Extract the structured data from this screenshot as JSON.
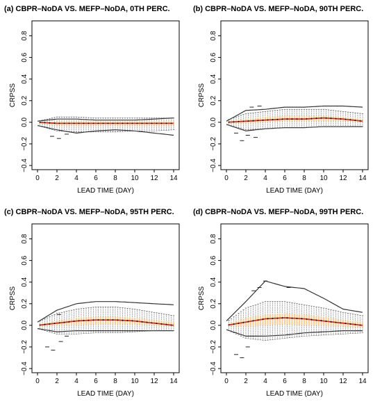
{
  "colors": {
    "median_line": "#c0392b",
    "iqr_fill": "#f6cf9a",
    "mean_points": "#000000",
    "whisker": "#555555",
    "outlier": "#222222"
  },
  "chart_data": [
    {
      "type": "boxplot",
      "title": "(a) CBPR–NoDA VS. MEFP–NoDA, 0TH PERC.",
      "xlabel": "LEAD TIME (DAY)",
      "ylabel": "CRPSS",
      "xlim": [
        0,
        14
      ],
      "ylim": [
        -0.4,
        0.9
      ],
      "xticks": [
        "0",
        "2",
        "4",
        "6",
        "8",
        "10",
        "12",
        "14"
      ],
      "yticks": [
        "−0.4",
        "−0.2",
        "0.0",
        "0.2",
        "0.4",
        "0.6",
        "0.8"
      ],
      "grid": false,
      "series": [
        {
          "x": [
            0,
            2,
            4,
            6,
            8,
            10,
            12,
            14
          ],
          "median": [
            0.0,
            -0.01,
            -0.01,
            -0.01,
            -0.01,
            -0.01,
            -0.01,
            -0.01
          ],
          "q1": [
            -0.01,
            -0.03,
            -0.03,
            -0.03,
            -0.03,
            -0.03,
            -0.03,
            -0.03
          ],
          "q3": [
            0.0,
            0.01,
            0.01,
            0.01,
            0.01,
            0.01,
            0.01,
            0.01
          ],
          "lo": [
            -0.03,
            -0.08,
            -0.09,
            -0.09,
            -0.09,
            -0.08,
            -0.08,
            -0.07
          ],
          "hi": [
            0.01,
            0.05,
            0.05,
            0.04,
            0.04,
            0.04,
            0.04,
            0.04
          ],
          "upper_env": [
            0.01,
            0.03,
            0.03,
            0.02,
            0.02,
            0.02,
            0.03,
            0.04
          ],
          "lower_env": [
            -0.03,
            -0.07,
            -0.1,
            -0.08,
            -0.07,
            -0.08,
            -0.1,
            -0.12
          ],
          "outliers": [
            [
              1.5,
              -0.13
            ],
            [
              2.2,
              -0.15
            ],
            [
              3.0,
              -0.11
            ]
          ]
        }
      ]
    },
    {
      "type": "boxplot",
      "title": "(b) CBPR–NoDA VS. MEFP–NoDA, 90TH PERC.",
      "xlabel": "LEAD TIME (DAY)",
      "ylabel": "CRPSS",
      "xlim": [
        0,
        14
      ],
      "ylim": [
        -0.4,
        0.9
      ],
      "xticks": [
        "0",
        "2",
        "4",
        "6",
        "8",
        "10",
        "12",
        "14"
      ],
      "yticks": [
        "−0.4",
        "−0.2",
        "0.0",
        "0.2",
        "0.4",
        "0.6",
        "0.8"
      ],
      "grid": false,
      "series": [
        {
          "x": [
            0,
            2,
            4,
            6,
            8,
            10,
            12,
            14
          ],
          "median": [
            0.0,
            0.01,
            0.02,
            0.03,
            0.03,
            0.04,
            0.03,
            0.01
          ],
          "q1": [
            -0.01,
            -0.01,
            0.0,
            0.01,
            0.01,
            0.01,
            0.01,
            0.0
          ],
          "q3": [
            0.01,
            0.03,
            0.05,
            0.06,
            0.06,
            0.06,
            0.05,
            0.03
          ],
          "lo": [
            -0.02,
            -0.07,
            -0.06,
            -0.05,
            -0.05,
            -0.04,
            -0.04,
            -0.04
          ],
          "hi": [
            0.02,
            0.08,
            0.1,
            0.12,
            0.12,
            0.12,
            0.1,
            0.08
          ],
          "upper_env": [
            0.01,
            0.11,
            0.12,
            0.14,
            0.14,
            0.15,
            0.15,
            0.14
          ],
          "lower_env": [
            -0.02,
            -0.08,
            -0.06,
            -0.05,
            -0.05,
            -0.04,
            -0.04,
            -0.04
          ],
          "outliers": [
            [
              1.0,
              -0.1
            ],
            [
              1.6,
              -0.17
            ],
            [
              2.2,
              -0.12
            ],
            [
              3.0,
              -0.14
            ],
            [
              2.6,
              0.14
            ],
            [
              3.4,
              0.15
            ]
          ]
        }
      ]
    },
    {
      "type": "boxplot",
      "title": "(c) CBPR–NoDA VS. MEFP–NoDA, 95TH PERC.",
      "xlabel": "LEAD TIME (DAY)",
      "ylabel": "CRPSS",
      "xlim": [
        0,
        14
      ],
      "ylim": [
        -0.4,
        0.9
      ],
      "xticks": [
        "0",
        "2",
        "4",
        "6",
        "8",
        "10",
        "12",
        "14"
      ],
      "yticks": [
        "−0.4",
        "−0.2",
        "0.0",
        "0.2",
        "0.4",
        "0.6",
        "0.8"
      ],
      "grid": false,
      "series": [
        {
          "x": [
            0,
            2,
            4,
            6,
            8,
            10,
            12,
            14
          ],
          "median": [
            0.0,
            0.02,
            0.04,
            0.05,
            0.05,
            0.04,
            0.02,
            0.0
          ],
          "q1": [
            -0.01,
            0.0,
            0.0,
            0.01,
            0.01,
            0.01,
            0.0,
            -0.01
          ],
          "q3": [
            0.01,
            0.04,
            0.07,
            0.08,
            0.08,
            0.07,
            0.05,
            0.03
          ],
          "lo": [
            -0.03,
            -0.08,
            -0.08,
            -0.07,
            -0.07,
            -0.06,
            -0.05,
            -0.05
          ],
          "hi": [
            0.03,
            0.11,
            0.15,
            0.17,
            0.17,
            0.15,
            0.12,
            0.09
          ],
          "upper_env": [
            0.03,
            0.14,
            0.2,
            0.22,
            0.22,
            0.21,
            0.2,
            0.19
          ],
          "lower_env": [
            -0.03,
            -0.06,
            -0.05,
            -0.05,
            -0.05,
            -0.05,
            -0.05,
            -0.05
          ],
          "outliers": [
            [
              1.0,
              -0.2
            ],
            [
              1.6,
              -0.23
            ],
            [
              2.2,
              0.1
            ],
            [
              2.4,
              -0.15
            ],
            [
              3.0,
              -0.1
            ]
          ]
        }
      ]
    },
    {
      "type": "boxplot",
      "title": "(d) CBPR–NoDA VS. MEFP–NoDA, 99TH PERC.",
      "xlabel": "LEAD TIME (DAY)",
      "ylabel": "CRPSS",
      "xlim": [
        0,
        14
      ],
      "ylim": [
        -0.4,
        0.9
      ],
      "xticks": [
        "0",
        "2",
        "4",
        "6",
        "8",
        "10",
        "12",
        "14"
      ],
      "yticks": [
        "−0.4",
        "−0.2",
        "0.0",
        "0.2",
        "0.4",
        "0.6",
        "0.8"
      ],
      "grid": false,
      "series": [
        {
          "x": [
            0,
            2,
            4,
            6,
            8,
            10,
            12,
            14
          ],
          "median": [
            0.0,
            0.03,
            0.06,
            0.07,
            0.06,
            0.04,
            0.02,
            0.0
          ],
          "q1": [
            -0.01,
            -0.01,
            0.0,
            0.01,
            0.0,
            0.0,
            -0.01,
            -0.02
          ],
          "q3": [
            0.01,
            0.07,
            0.1,
            0.11,
            0.1,
            0.08,
            0.05,
            0.03
          ],
          "lo": [
            -0.04,
            -0.12,
            -0.14,
            -0.12,
            -0.1,
            -0.09,
            -0.08,
            -0.07
          ],
          "hi": [
            0.03,
            0.16,
            0.22,
            0.22,
            0.19,
            0.16,
            0.12,
            0.09
          ],
          "upper_env": [
            0.04,
            0.22,
            0.41,
            0.36,
            0.34,
            0.25,
            0.15,
            0.12
          ],
          "lower_env": [
            -0.04,
            -0.1,
            -0.1,
            -0.09,
            -0.07,
            -0.06,
            -0.05,
            -0.05
          ],
          "outliers": [
            [
              1.0,
              -0.27
            ],
            [
              1.6,
              -0.3
            ],
            [
              2.2,
              -0.2
            ],
            [
              2.8,
              0.32
            ],
            [
              3.4,
              0.35
            ],
            [
              4.0,
              0.41
            ],
            [
              6.4,
              0.35
            ]
          ]
        }
      ]
    }
  ]
}
